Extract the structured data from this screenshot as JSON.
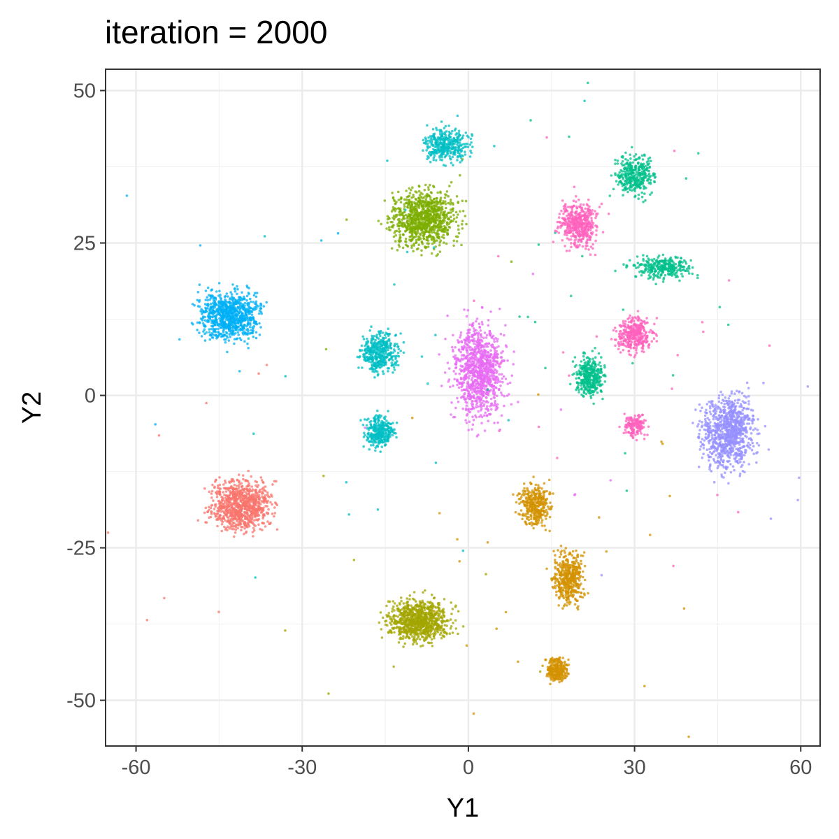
{
  "chart_data": {
    "type": "scatter",
    "title": "iteration =  2000",
    "xlabel": "Y1",
    "ylabel": "Y2",
    "xlim": [
      -65.5,
      63.5
    ],
    "ylim": [
      -57.5,
      53.5
    ],
    "x_ticks": [
      -60,
      -30,
      0,
      30,
      60
    ],
    "x_tick_labels": [
      "-60",
      "-30",
      "0",
      "30",
      "60"
    ],
    "y_ticks": [
      -50,
      -25,
      0,
      25,
      50
    ],
    "y_tick_labels": [
      "-50",
      "-25",
      "0",
      "25",
      "50"
    ],
    "x_minor_ticks": [
      -45,
      -15,
      15,
      45
    ],
    "y_minor_ticks": [
      -37.5,
      -12.5,
      12.5,
      37.5
    ],
    "grid": true,
    "legend": "none",
    "point_alpha": 0.75,
    "clusters": [
      {
        "color": "#F8766D",
        "center": [
          -41,
          -18
        ],
        "spread": [
          8,
          6
        ],
        "n": 900
      },
      {
        "color": "#00B0F6",
        "center": [
          -43,
          13
        ],
        "spread": [
          8,
          6
        ],
        "n": 850
      },
      {
        "color": "#7CAE00",
        "center": [
          -8,
          29
        ],
        "spread": [
          9,
          7
        ],
        "n": 950
      },
      {
        "color": "#00BFC4",
        "center": [
          -4,
          41
        ],
        "spread": [
          6,
          4
        ],
        "n": 350
      },
      {
        "color": "#00BFC4",
        "center": [
          -16,
          7
        ],
        "spread": [
          5,
          5
        ],
        "n": 400
      },
      {
        "color": "#00BFC4",
        "center": [
          -16,
          -6
        ],
        "spread": [
          4,
          4
        ],
        "n": 300
      },
      {
        "color": "#E76BF3",
        "center": [
          2,
          4
        ],
        "spread": [
          7,
          12
        ],
        "n": 1000
      },
      {
        "color": "#FF62BC",
        "center": [
          20,
          28
        ],
        "spread": [
          5,
          6
        ],
        "n": 450
      },
      {
        "color": "#FF62BC",
        "center": [
          30,
          10
        ],
        "spread": [
          5,
          4
        ],
        "n": 350
      },
      {
        "color": "#FF62BC",
        "center": [
          30,
          -5
        ],
        "spread": [
          3,
          3
        ],
        "n": 150
      },
      {
        "color": "#00C08B",
        "center": [
          30,
          36
        ],
        "spread": [
          5,
          5
        ],
        "n": 350
      },
      {
        "color": "#00C08B",
        "center": [
          35,
          21
        ],
        "spread": [
          8,
          3
        ],
        "n": 300
      },
      {
        "color": "#00C08B",
        "center": [
          22,
          3
        ],
        "spread": [
          4,
          5
        ],
        "n": 350
      },
      {
        "color": "#9590FF",
        "center": [
          47,
          -6
        ],
        "spread": [
          7,
          9
        ],
        "n": 900
      },
      {
        "color": "#D39200",
        "center": [
          12,
          -18
        ],
        "spread": [
          4,
          5
        ],
        "n": 350
      },
      {
        "color": "#D39200",
        "center": [
          18,
          -30
        ],
        "spread": [
          4,
          6
        ],
        "n": 450
      },
      {
        "color": "#D39200",
        "center": [
          16,
          -45
        ],
        "spread": [
          3,
          3
        ],
        "n": 250
      },
      {
        "color": "#A3A500",
        "center": [
          -9,
          -37
        ],
        "spread": [
          8,
          5
        ],
        "n": 900
      }
    ],
    "stray_points_per_cluster": 8
  }
}
